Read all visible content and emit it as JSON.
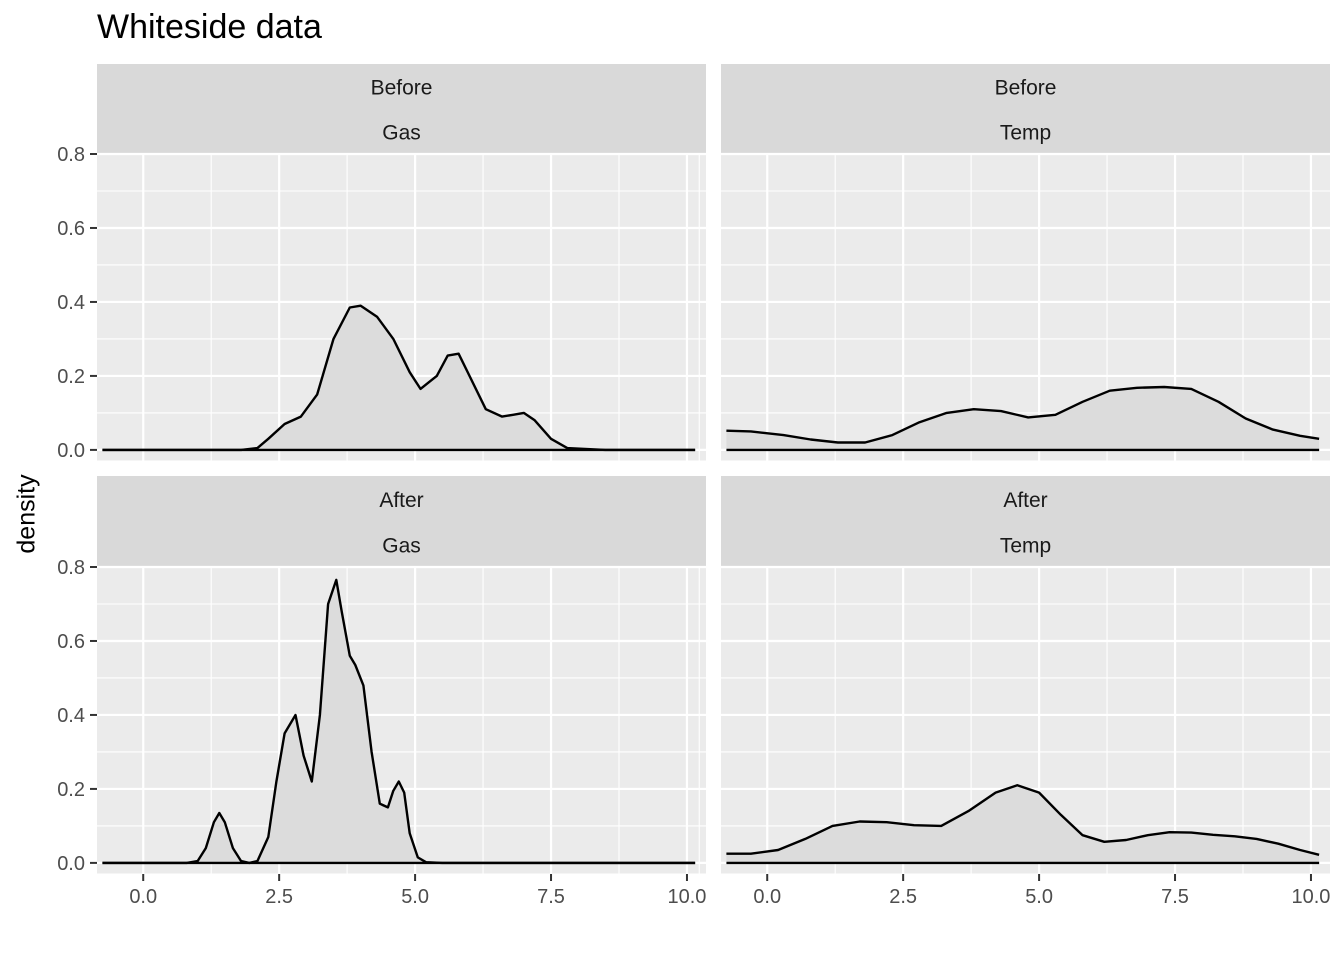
{
  "chart_data": {
    "type": "area",
    "title": "Whiteside data",
    "xlabel": "",
    "ylabel": "density",
    "xlim": [
      -0.85,
      10.35
    ],
    "ylim": [
      -0.03,
      0.8
    ],
    "x_ticks": [
      "0.0",
      "2.5",
      "5.0",
      "7.5",
      "10.0"
    ],
    "y_ticks": [
      "0.0",
      "0.2",
      "0.4",
      "0.6",
      "0.8"
    ],
    "grid": true,
    "facets": [
      {
        "strip": [
          "Before",
          "Gas"
        ],
        "x": [
          -0.75,
          1.0,
          1.8,
          2.1,
          2.3,
          2.6,
          2.9,
          3.2,
          3.5,
          3.8,
          4.0,
          4.3,
          4.6,
          4.9,
          5.1,
          5.4,
          5.6,
          5.8,
          6.0,
          6.3,
          6.6,
          6.8,
          7.0,
          7.2,
          7.5,
          7.8,
          8.5,
          10.15
        ],
        "values": [
          0,
          0,
          0,
          0.005,
          0.03,
          0.07,
          0.09,
          0.15,
          0.3,
          0.385,
          0.39,
          0.36,
          0.3,
          0.21,
          0.165,
          0.2,
          0.255,
          0.26,
          0.2,
          0.11,
          0.09,
          0.095,
          0.1,
          0.08,
          0.03,
          0.005,
          0,
          0
        ]
      },
      {
        "strip": [
          "Before",
          "Temp"
        ],
        "x": [
          -0.75,
          -0.3,
          0.3,
          0.8,
          1.3,
          1.8,
          2.3,
          2.8,
          3.3,
          3.8,
          4.3,
          4.8,
          5.3,
          5.8,
          6.3,
          6.8,
          7.3,
          7.8,
          8.3,
          8.8,
          9.3,
          9.8,
          10.15
        ],
        "values": [
          0.052,
          0.05,
          0.04,
          0.028,
          0.02,
          0.02,
          0.04,
          0.075,
          0.1,
          0.11,
          0.105,
          0.088,
          0.095,
          0.13,
          0.16,
          0.168,
          0.17,
          0.165,
          0.13,
          0.085,
          0.055,
          0.038,
          0.03
        ]
      },
      {
        "strip": [
          "After",
          "Gas"
        ],
        "x": [
          -0.75,
          0.8,
          1.0,
          1.15,
          1.3,
          1.4,
          1.5,
          1.65,
          1.8,
          1.95,
          2.1,
          2.3,
          2.45,
          2.6,
          2.8,
          2.95,
          3.1,
          3.25,
          3.4,
          3.55,
          3.65,
          3.8,
          3.9,
          4.05,
          4.2,
          4.35,
          4.5,
          4.6,
          4.7,
          4.8,
          4.9,
          5.05,
          5.2,
          5.5,
          10.15
        ],
        "values": [
          0,
          0,
          0.005,
          0.04,
          0.11,
          0.135,
          0.11,
          0.04,
          0.005,
          0,
          0.005,
          0.07,
          0.22,
          0.35,
          0.4,
          0.29,
          0.22,
          0.4,
          0.7,
          0.765,
          0.68,
          0.56,
          0.535,
          0.48,
          0.3,
          0.16,
          0.15,
          0.195,
          0.22,
          0.19,
          0.08,
          0.015,
          0.002,
          0,
          0
        ]
      },
      {
        "strip": [
          "After",
          "Temp"
        ],
        "x": [
          -0.75,
          -0.3,
          0.2,
          0.7,
          1.2,
          1.7,
          2.2,
          2.7,
          3.2,
          3.7,
          4.2,
          4.6,
          5.0,
          5.4,
          5.8,
          6.2,
          6.6,
          7.0,
          7.4,
          7.8,
          8.2,
          8.6,
          9.0,
          9.4,
          9.8,
          10.15
        ],
        "values": [
          0.025,
          0.025,
          0.035,
          0.065,
          0.1,
          0.112,
          0.11,
          0.102,
          0.1,
          0.14,
          0.19,
          0.21,
          0.19,
          0.13,
          0.075,
          0.057,
          0.062,
          0.075,
          0.083,
          0.082,
          0.076,
          0.072,
          0.065,
          0.052,
          0.035,
          0.022
        ]
      }
    ]
  }
}
